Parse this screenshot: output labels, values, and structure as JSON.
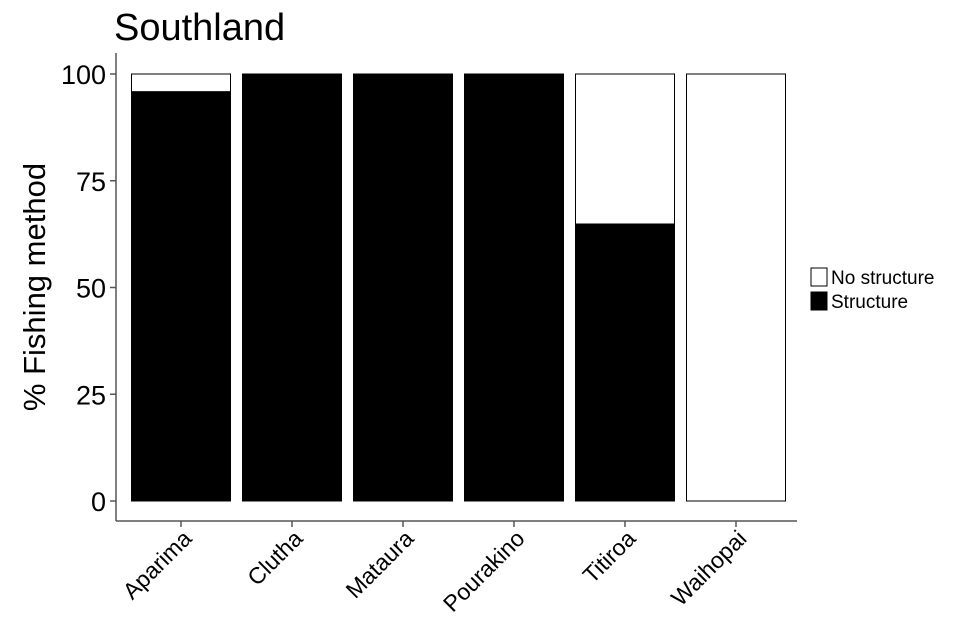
{
  "chart_data": {
    "type": "bar",
    "stacked": true,
    "title": "Southland",
    "xlabel": "",
    "ylabel": "% Fishing method",
    "ylim": [
      0,
      100
    ],
    "yticks": [
      "0",
      "25",
      "50",
      "75",
      "100"
    ],
    "categories": [
      "Aparima",
      "Clutha",
      "Mataura",
      "Pourakino",
      "Titiroa",
      "Waihopai"
    ],
    "series": [
      {
        "name": "Structure",
        "values": [
          96,
          100,
          100,
          100,
          65,
          0
        ],
        "color": "#000000"
      },
      {
        "name": "No structure",
        "values": [
          4,
          0,
          0,
          0,
          35,
          100
        ],
        "color": "#ffffff"
      }
    ],
    "legend": {
      "position": "right",
      "entries": [
        "No structure",
        "Structure"
      ]
    },
    "grid": false
  }
}
